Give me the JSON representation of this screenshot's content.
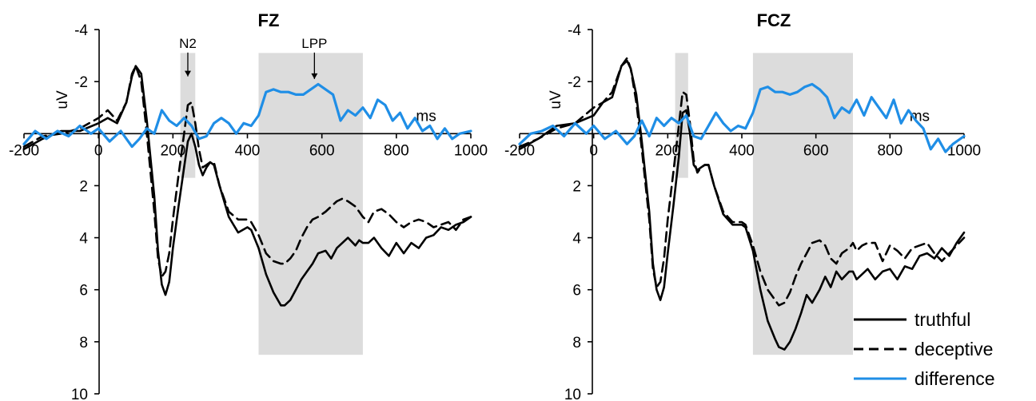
{
  "chart_data": [
    {
      "type": "line",
      "title": "FZ",
      "xlabel": "ms",
      "ylabel": "uV",
      "xlim": [
        -200,
        1000
      ],
      "ylim": [
        -4,
        10
      ],
      "y_inverted": true,
      "x_ticks": [
        "-200",
        "0",
        "200",
        "400",
        "600",
        "800",
        "1000"
      ],
      "y_ticks": [
        "-4",
        "-2",
        "",
        "2",
        "4",
        "6",
        "8",
        "10"
      ],
      "shaded_windows": [
        [
          220,
          260
        ],
        [
          430,
          710
        ]
      ],
      "annotations": [
        {
          "text": "N2",
          "x": 240
        },
        {
          "text": "LPP",
          "x": 580
        }
      ],
      "series": [
        {
          "name": "truthful",
          "color": "#000000",
          "dash": "solid",
          "x": [
            -200,
            -150,
            -100,
            -50,
            0,
            25,
            50,
            75,
            90,
            100,
            115,
            130,
            150,
            160,
            170,
            180,
            190,
            200,
            215,
            230,
            240,
            250,
            260,
            270,
            280,
            290,
            300,
            310,
            325,
            350,
            375,
            400,
            410,
            430,
            450,
            470,
            490,
            500,
            515,
            530,
            545,
            560,
            575,
            590,
            610,
            625,
            640,
            655,
            670,
            690,
            700,
            710,
            725,
            740,
            760,
            780,
            800,
            820,
            840,
            860,
            880,
            900,
            920,
            940,
            960,
            980,
            1000
          ],
          "y": [
            0.6,
            0.2,
            -0.1,
            -0.1,
            -0.4,
            -0.6,
            -0.4,
            -1.2,
            -2.2,
            -2.6,
            -2.3,
            -0.5,
            2.4,
            4.5,
            5.8,
            6.2,
            5.7,
            4.4,
            2.8,
            1.3,
            0.3,
            0.0,
            0.5,
            1.2,
            1.6,
            1.3,
            1.1,
            1.2,
            2.0,
            3.2,
            3.8,
            3.6,
            3.7,
            4.4,
            5.4,
            6.1,
            6.6,
            6.6,
            6.4,
            6.0,
            5.6,
            5.3,
            5.0,
            4.6,
            4.5,
            4.8,
            4.4,
            4.2,
            4.0,
            4.3,
            4.1,
            4.2,
            4.2,
            4.0,
            4.4,
            4.7,
            4.2,
            4.6,
            4.2,
            4.4,
            4.0,
            3.9,
            3.6,
            3.7,
            3.5,
            3.4,
            3.2
          ]
        },
        {
          "name": "deceptive",
          "color": "#000000",
          "dash": "dashed",
          "x": [
            -200,
            -150,
            -100,
            -50,
            0,
            25,
            50,
            75,
            90,
            100,
            115,
            130,
            150,
            160,
            170,
            180,
            190,
            200,
            215,
            230,
            240,
            250,
            260,
            270,
            280,
            290,
            300,
            310,
            325,
            350,
            375,
            400,
            410,
            430,
            450,
            470,
            490,
            500,
            515,
            530,
            545,
            560,
            575,
            590,
            610,
            625,
            640,
            655,
            670,
            690,
            700,
            710,
            725,
            740,
            760,
            780,
            800,
            820,
            840,
            860,
            880,
            900,
            920,
            940,
            960,
            980,
            1000
          ],
          "y": [
            0.5,
            0.1,
            0.0,
            -0.2,
            -0.6,
            -0.9,
            -0.5,
            -1.2,
            -2.3,
            -2.6,
            -2.0,
            0.0,
            3.0,
            4.8,
            5.5,
            5.3,
            4.6,
            3.3,
            1.6,
            0.0,
            -1.1,
            -1.2,
            -0.4,
            0.6,
            1.3,
            1.2,
            1.1,
            1.1,
            2.0,
            3.0,
            3.3,
            3.3,
            3.4,
            3.9,
            4.6,
            4.9,
            5.0,
            5.0,
            4.8,
            4.5,
            4.0,
            3.6,
            3.3,
            3.2,
            3.0,
            2.8,
            2.6,
            2.5,
            2.6,
            2.8,
            3.0,
            3.2,
            3.4,
            3.0,
            2.9,
            3.1,
            3.4,
            3.6,
            3.4,
            3.3,
            3.4,
            3.6,
            3.5,
            3.4,
            3.7,
            3.3,
            3.2
          ]
        },
        {
          "name": "difference",
          "color": "#1f8ee6",
          "dash": "solid",
          "x": [
            -200,
            -170,
            -140,
            -110,
            -80,
            -50,
            -20,
            0,
            30,
            60,
            90,
            110,
            130,
            150,
            170,
            190,
            210,
            230,
            250,
            270,
            290,
            310,
            330,
            350,
            370,
            390,
            410,
            430,
            450,
            470,
            490,
            510,
            530,
            550,
            570,
            590,
            610,
            630,
            650,
            670,
            690,
            710,
            730,
            750,
            770,
            790,
            810,
            830,
            850,
            870,
            890,
            910,
            930,
            950,
            970,
            1000
          ],
          "y": [
            0.4,
            -0.1,
            0.2,
            -0.1,
            0.1,
            -0.3,
            0.0,
            -0.2,
            0.3,
            -0.1,
            0.5,
            0.2,
            -0.2,
            0.0,
            -0.9,
            -0.5,
            -0.3,
            -0.6,
            -0.3,
            0.2,
            0.1,
            -0.4,
            -0.6,
            -0.4,
            0.0,
            -0.4,
            -0.3,
            -0.7,
            -1.6,
            -1.7,
            -1.6,
            -1.6,
            -1.5,
            -1.5,
            -1.7,
            -1.9,
            -1.7,
            -1.5,
            -0.5,
            -0.9,
            -0.7,
            -1.0,
            -0.6,
            -1.3,
            -1.1,
            -0.5,
            -0.8,
            -0.2,
            -0.6,
            -0.1,
            -0.3,
            0.2,
            -0.2,
            0.2,
            0.0,
            -0.1
          ]
        }
      ]
    },
    {
      "type": "line",
      "title": "FCZ",
      "xlabel": "ms",
      "ylabel": "uV",
      "xlim": [
        -200,
        1000
      ],
      "ylim": [
        -4,
        10
      ],
      "y_inverted": true,
      "x_ticks": [
        "-200",
        "0",
        "200",
        "400",
        "600",
        "800",
        "1000"
      ],
      "y_ticks": [
        "-4",
        "-2",
        "",
        "2",
        "4",
        "6",
        "8",
        "10"
      ],
      "shaded_windows": [
        [
          220,
          255
        ],
        [
          430,
          700
        ]
      ],
      "annotations": [],
      "series": [
        {
          "name": "truthful",
          "color": "#000000",
          "dash": "solid",
          "x": [
            -200,
            -150,
            -100,
            -50,
            0,
            25,
            50,
            75,
            90,
            100,
            115,
            130,
            150,
            160,
            170,
            180,
            190,
            200,
            215,
            230,
            240,
            250,
            260,
            270,
            280,
            290,
            300,
            310,
            325,
            350,
            375,
            400,
            410,
            430,
            450,
            470,
            490,
            500,
            515,
            530,
            545,
            560,
            575,
            590,
            610,
            625,
            640,
            655,
            670,
            690,
            700,
            710,
            725,
            740,
            760,
            780,
            800,
            820,
            840,
            860,
            880,
            900,
            920,
            940,
            960,
            980,
            1000
          ],
          "y": [
            0.6,
            0.2,
            -0.3,
            -0.4,
            -0.7,
            -1.2,
            -1.4,
            -2.6,
            -2.8,
            -2.5,
            -1.5,
            0.3,
            3.0,
            5.0,
            6.0,
            6.4,
            5.9,
            4.6,
            2.8,
            0.9,
            -0.8,
            -0.9,
            0.0,
            1.2,
            1.4,
            1.3,
            1.2,
            1.2,
            2.0,
            3.1,
            3.5,
            3.5,
            3.6,
            4.5,
            6.0,
            7.2,
            7.9,
            8.2,
            8.3,
            8.0,
            7.5,
            6.9,
            6.2,
            6.5,
            6.0,
            5.5,
            5.9,
            5.3,
            5.6,
            5.3,
            5.3,
            5.6,
            5.4,
            5.2,
            5.6,
            5.3,
            5.2,
            5.6,
            5.1,
            5.2,
            4.7,
            4.6,
            4.8,
            4.4,
            4.7,
            4.2,
            3.8
          ]
        },
        {
          "name": "deceptive",
          "color": "#000000",
          "dash": "dashed",
          "x": [
            -200,
            -150,
            -100,
            -50,
            0,
            25,
            50,
            75,
            90,
            100,
            115,
            130,
            150,
            160,
            170,
            180,
            190,
            200,
            215,
            230,
            240,
            250,
            260,
            270,
            280,
            290,
            300,
            310,
            325,
            350,
            375,
            400,
            410,
            430,
            450,
            470,
            490,
            500,
            515,
            530,
            545,
            560,
            575,
            590,
            610,
            625,
            640,
            655,
            670,
            690,
            700,
            710,
            725,
            740,
            760,
            780,
            800,
            820,
            840,
            860,
            880,
            900,
            920,
            940,
            960,
            980,
            1000
          ],
          "y": [
            0.5,
            0.2,
            -0.2,
            -0.4,
            -1.0,
            -1.2,
            -1.6,
            -2.6,
            -2.9,
            -2.5,
            -1.2,
            0.6,
            3.3,
            5.2,
            5.9,
            5.7,
            4.8,
            3.3,
            1.5,
            -0.3,
            -1.6,
            -1.5,
            -0.4,
            1.0,
            1.5,
            1.3,
            1.2,
            1.2,
            2.0,
            3.0,
            3.4,
            3.4,
            3.5,
            4.3,
            5.3,
            6.0,
            6.4,
            6.6,
            6.5,
            6.1,
            5.5,
            5.0,
            4.6,
            4.2,
            4.1,
            4.3,
            4.8,
            5.0,
            4.6,
            4.4,
            4.2,
            4.5,
            4.3,
            4.2,
            4.2,
            4.9,
            4.3,
            4.5,
            4.8,
            4.4,
            4.3,
            4.2,
            4.6,
            4.9,
            4.6,
            4.3,
            4.0
          ]
        },
        {
          "name": "difference",
          "color": "#1f8ee6",
          "dash": "solid",
          "x": [
            -200,
            -170,
            -140,
            -110,
            -80,
            -50,
            -20,
            0,
            30,
            60,
            90,
            110,
            130,
            150,
            170,
            190,
            210,
            230,
            250,
            270,
            290,
            310,
            330,
            350,
            370,
            390,
            410,
            430,
            450,
            470,
            490,
            510,
            530,
            550,
            570,
            590,
            610,
            630,
            650,
            670,
            690,
            710,
            730,
            750,
            770,
            790,
            810,
            830,
            850,
            870,
            890,
            910,
            930,
            950,
            970,
            1000
          ],
          "y": [
            0.4,
            0.0,
            -0.1,
            -0.3,
            0.1,
            -0.4,
            0.0,
            -0.3,
            0.2,
            -0.1,
            0.4,
            0.1,
            -0.5,
            0.1,
            -0.6,
            -0.3,
            -0.6,
            -0.4,
            -0.7,
            0.1,
            0.2,
            -0.3,
            -0.8,
            -0.4,
            -0.1,
            -0.3,
            -0.2,
            -0.8,
            -1.7,
            -1.8,
            -1.6,
            -1.6,
            -1.5,
            -1.6,
            -1.8,
            -1.9,
            -1.7,
            -1.4,
            -0.6,
            -1.0,
            -0.8,
            -1.3,
            -0.7,
            -1.4,
            -1.0,
            -0.6,
            -1.3,
            -0.4,
            -0.9,
            -0.5,
            -0.2,
            0.6,
            0.2,
            0.7,
            0.4,
            0.1
          ]
        }
      ]
    }
  ],
  "legend": {
    "items": [
      {
        "label": "truthful",
        "color": "#000000",
        "dash": "solid"
      },
      {
        "label": "deceptive",
        "color": "#000000",
        "dash": "dashed"
      },
      {
        "label": "difference",
        "color": "#1f8ee6",
        "dash": "solid"
      }
    ]
  }
}
